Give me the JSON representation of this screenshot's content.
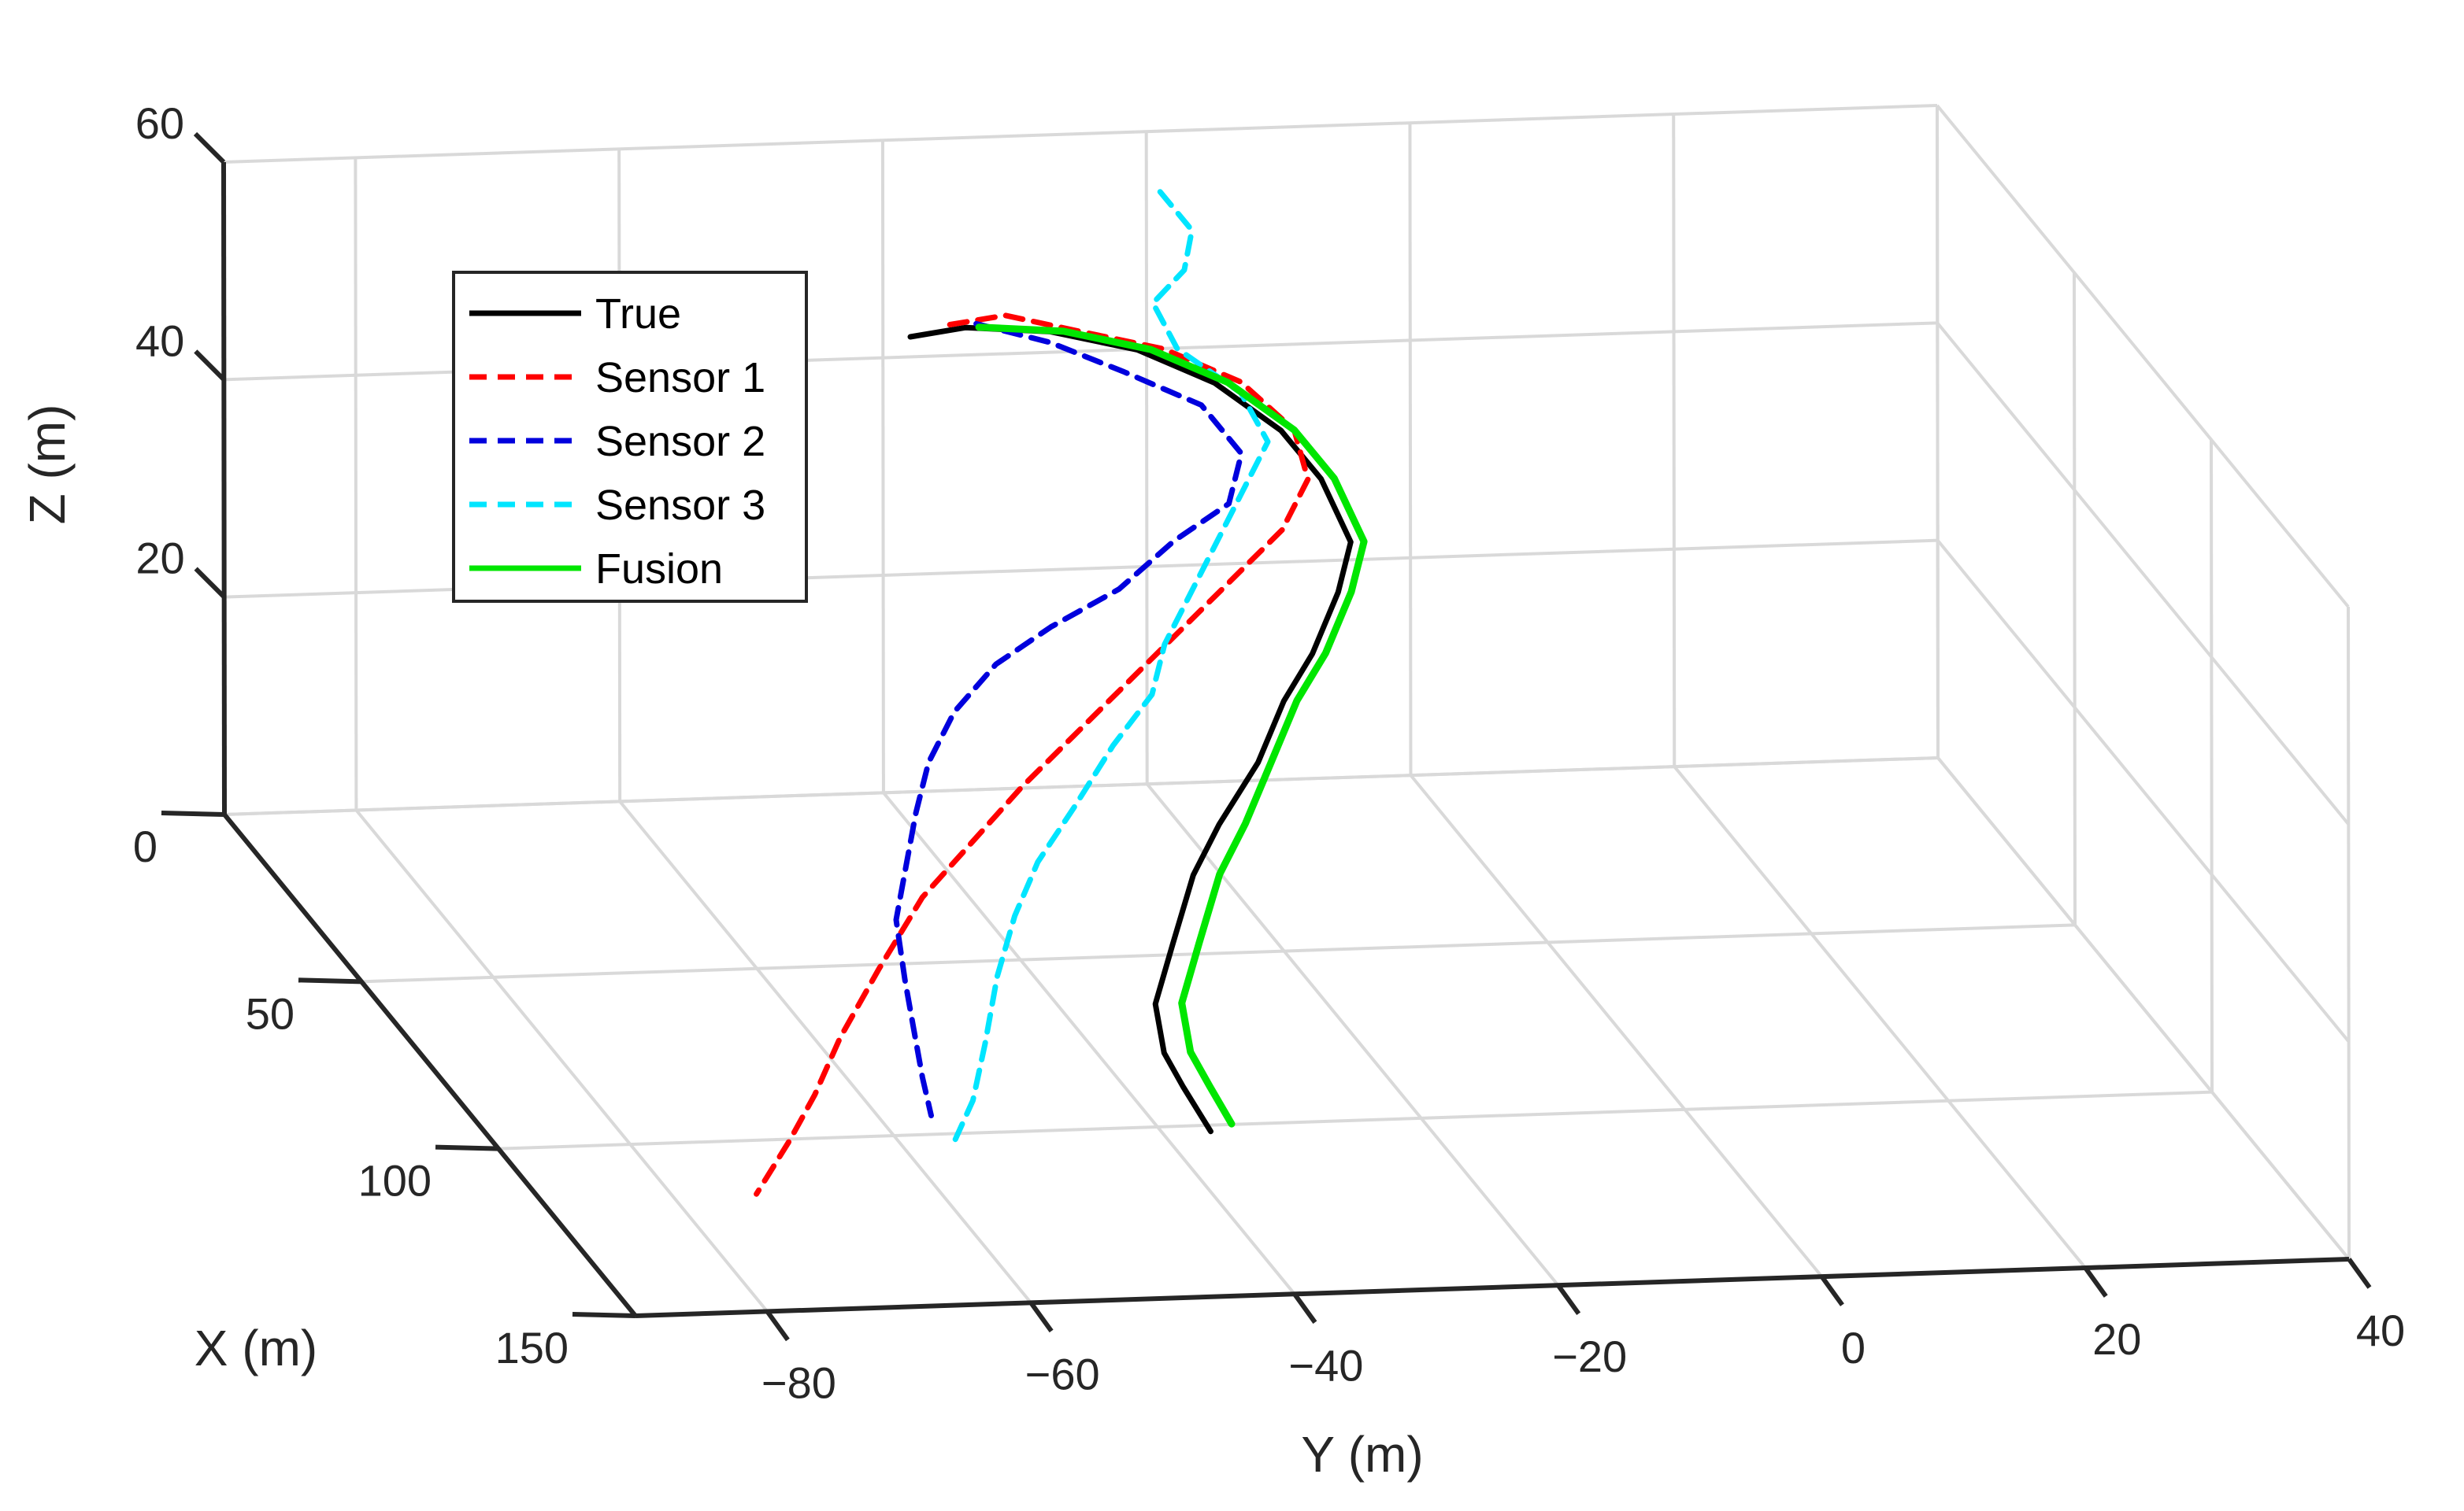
{
  "chart_data": {
    "type": "line3d",
    "axes": {
      "x": {
        "label": "X (m)",
        "lim": [
          0,
          150
        ],
        "ticks": [
          0,
          50,
          100,
          150
        ]
      },
      "y": {
        "label": "Y (m)",
        "lim": [
          -90,
          40
        ],
        "ticks": [
          -80,
          -60,
          -40,
          -20,
          0,
          20,
          40
        ]
      },
      "z": {
        "label": "Z (m)",
        "lim": [
          0,
          60
        ],
        "ticks": [
          20,
          40,
          60
        ]
      }
    },
    "grid": true,
    "legend": {
      "position": "upper-left"
    },
    "series": [
      {
        "name": "True",
        "color": "#000000",
        "style": "solid",
        "points": [
          [
            10,
            -40,
            45
          ],
          [
            11,
            -36,
            46
          ],
          [
            13,
            -30,
            46
          ],
          [
            16,
            -24,
            45
          ],
          [
            20,
            -19,
            43
          ],
          [
            25,
            -15,
            40
          ],
          [
            30,
            -13,
            37
          ],
          [
            36,
            -12,
            33
          ],
          [
            41,
            -14,
            30
          ],
          [
            46,
            -17,
            26
          ],
          [
            50,
            -20,
            23
          ],
          [
            55,
            -23,
            19
          ],
          [
            60,
            -27,
            15
          ],
          [
            65,
            -30,
            12
          ],
          [
            72,
            -33,
            8
          ],
          [
            80,
            -36,
            5
          ],
          [
            88,
            -37,
            3
          ],
          [
            95,
            -37,
            2
          ],
          [
            105,
            -37,
            1
          ]
        ]
      },
      {
        "name": "Sensor 1",
        "color": "#ff0000",
        "style": "dashed",
        "points": [
          [
            10,
            -37,
            46
          ],
          [
            11,
            -33,
            47
          ],
          [
            13,
            -28,
            46
          ],
          [
            16,
            -22,
            45
          ],
          [
            20,
            -17,
            43
          ],
          [
            25,
            -14,
            40
          ],
          [
            30,
            -14,
            37
          ],
          [
            35,
            -17,
            34
          ],
          [
            40,
            -22,
            31
          ],
          [
            45,
            -27,
            28
          ],
          [
            50,
            -32,
            25
          ],
          [
            55,
            -37,
            22
          ],
          [
            60,
            -42,
            19
          ],
          [
            66,
            -47,
            16
          ],
          [
            72,
            -52,
            13
          ],
          [
            80,
            -57,
            9
          ],
          [
            90,
            -62,
            6
          ],
          [
            100,
            -66,
            4
          ],
          [
            110,
            -70,
            3
          ],
          [
            122,
            -75,
            2
          ]
        ]
      },
      {
        "name": "Sensor 2",
        "color": "#0000dd",
        "style": "dashed",
        "points": [
          [
            10,
            -35,
            46
          ],
          [
            13,
            -30,
            45
          ],
          [
            16,
            -25,
            43
          ],
          [
            20,
            -20,
            41
          ],
          [
            25,
            -18,
            38
          ],
          [
            30,
            -20,
            35
          ],
          [
            34,
            -25,
            33
          ],
          [
            38,
            -30,
            30
          ],
          [
            42,
            -36,
            28
          ],
          [
            46,
            -41,
            26
          ],
          [
            50,
            -45,
            23
          ],
          [
            55,
            -48,
            20
          ],
          [
            60,
            -50,
            17
          ],
          [
            66,
            -52,
            14
          ],
          [
            72,
            -54,
            11
          ],
          [
            80,
            -55,
            8
          ],
          [
            88,
            -56,
            6
          ],
          [
            96,
            -57,
            4
          ],
          [
            104,
            -58,
            3
          ]
        ]
      },
      {
        "name": "Sensor 3",
        "color": "#00e5ff",
        "style": "dashed",
        "points": [
          [
            5,
            -20,
            56
          ],
          [
            7,
            -18,
            53
          ],
          [
            9,
            -19,
            50
          ],
          [
            12,
            -22,
            48
          ],
          [
            16,
            -21,
            45
          ],
          [
            20,
            -17,
            42
          ],
          [
            25,
            -16,
            39
          ],
          [
            30,
            -19,
            36
          ],
          [
            35,
            -22,
            33
          ],
          [
            40,
            -25,
            30
          ],
          [
            45,
            -28,
            27
          ],
          [
            50,
            -30,
            24
          ],
          [
            55,
            -34,
            21
          ],
          [
            60,
            -38,
            17
          ],
          [
            66,
            -42,
            14
          ],
          [
            72,
            -45,
            11
          ],
          [
            80,
            -48,
            8
          ],
          [
            90,
            -51,
            5
          ],
          [
            100,
            -54,
            3
          ],
          [
            108,
            -57,
            2
          ]
        ]
      },
      {
        "name": "Fusion",
        "color": "#00e600",
        "style": "solid",
        "points": [
          [
            11,
            -35,
            46
          ],
          [
            13,
            -29,
            46
          ],
          [
            16,
            -23,
            45
          ],
          [
            20,
            -18,
            43
          ],
          [
            25,
            -14,
            40
          ],
          [
            30,
            -12,
            37
          ],
          [
            36,
            -11,
            33
          ],
          [
            41,
            -13,
            30
          ],
          [
            46,
            -16,
            26
          ],
          [
            50,
            -19,
            23
          ],
          [
            55,
            -22,
            19
          ],
          [
            60,
            -25,
            15
          ],
          [
            65,
            -28,
            12
          ],
          [
            72,
            -31,
            8
          ],
          [
            80,
            -34,
            5
          ],
          [
            88,
            -35,
            3
          ],
          [
            95,
            -35,
            2
          ],
          [
            103,
            -35,
            1
          ]
        ]
      }
    ]
  }
}
